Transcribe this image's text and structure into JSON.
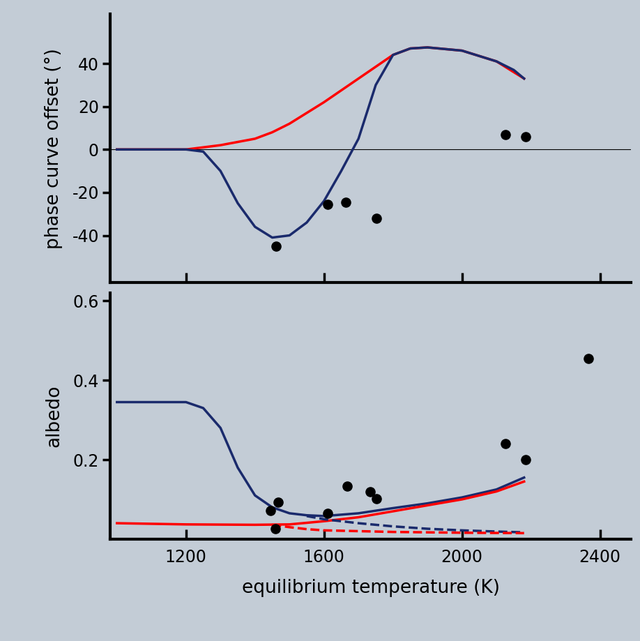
{
  "chart_data": [
    {
      "type": "line",
      "ylabel": "phase curve offset (°)",
      "xlim": [
        980,
        2490
      ],
      "xticks": [
        1200,
        1600,
        2000,
        2400
      ],
      "ylim": [
        -62,
        63
      ],
      "yticks": [
        -40,
        -20,
        0,
        20,
        40
      ],
      "tick_labels": "y",
      "series": [
        {
          "type": "line",
          "color": "#000000",
          "line_style": "solid",
          "x": [
            980,
            2490
          ],
          "values": [
            0,
            0
          ]
        },
        {
          "type": "line",
          "color": "#ff0000",
          "line_style": "solid",
          "x": [
            1000,
            1200,
            1300,
            1400,
            1450,
            1500,
            1600,
            1700,
            1800,
            1850,
            1900,
            2000,
            2100,
            2180
          ],
          "values": [
            0,
            0,
            2,
            5,
            8,
            12,
            22,
            33,
            44,
            47,
            47.5,
            46,
            41,
            33
          ]
        },
        {
          "type": "line",
          "color": "#1a2a6c",
          "line_style": "solid",
          "x": [
            1000,
            1100,
            1200,
            1250,
            1300,
            1350,
            1400,
            1450,
            1500,
            1550,
            1600,
            1650,
            1700,
            1750,
            1800,
            1850,
            1900,
            2000,
            2100,
            2150,
            2180
          ],
          "values": [
            0,
            0,
            0,
            -1,
            -10,
            -25,
            -36,
            -41,
            -40,
            -34,
            -24,
            -10,
            5,
            30,
            44,
            47,
            47.5,
            46,
            41,
            37,
            33
          ]
        },
        {
          "type": "scatter",
          "color": "#000000",
          "marker": "o",
          "x": [
            1461,
            1610,
            1663,
            1753,
            2126,
            2184
          ],
          "values": [
            -44.9,
            -25.6,
            -24.7,
            -32,
            7,
            6
          ]
        }
      ]
    },
    {
      "type": "line",
      "xlabel": "equilibrium temperature (K)",
      "ylabel": "albedo",
      "xlim": [
        980,
        2490
      ],
      "xticks": [
        1200,
        1600,
        2000,
        2400
      ],
      "ylim": [
        0,
        0.62
      ],
      "yticks": [
        0.2,
        0.4,
        0.6
      ],
      "series": [
        {
          "type": "line",
          "color": "#1a2a6c",
          "line_style": "solid",
          "x": [
            1000,
            1200,
            1250,
            1300,
            1350,
            1400,
            1450,
            1500,
            1550,
            1600,
            1700,
            1800,
            1900,
            2000,
            2100,
            2180
          ],
          "values": [
            0.345,
            0.345,
            0.33,
            0.28,
            0.18,
            0.11,
            0.08,
            0.065,
            0.06,
            0.058,
            0.065,
            0.078,
            0.09,
            0.105,
            0.125,
            0.155
          ]
        },
        {
          "type": "line",
          "color": "#ff0000",
          "line_style": "solid",
          "x": [
            1000,
            1200,
            1400,
            1500,
            1600,
            1700,
            1800,
            1900,
            2000,
            2100,
            2180
          ],
          "values": [
            0.04,
            0.037,
            0.036,
            0.037,
            0.045,
            0.055,
            0.07,
            0.085,
            0.1,
            0.12,
            0.145
          ]
        },
        {
          "type": "line",
          "color": "#1a2a6c",
          "line_style": "dashed",
          "x": [
            1550,
            1600,
            1700,
            1800,
            1900,
            2000,
            2100,
            2180
          ],
          "values": [
            0.058,
            0.05,
            0.04,
            0.032,
            0.026,
            0.022,
            0.019,
            0.017
          ]
        },
        {
          "type": "line",
          "color": "#ff0000",
          "line_style": "dashed",
          "x": [
            1450,
            1500,
            1550,
            1600,
            1700,
            1800,
            1900,
            2000,
            2180
          ],
          "values": [
            0.036,
            0.03,
            0.025,
            0.022,
            0.02,
            0.018,
            0.017,
            0.016,
            0.015
          ]
        },
        {
          "type": "scatter",
          "color": "#000000",
          "marker": "o",
          "x": [
            1445,
            1467,
            1460,
            1610,
            1667,
            1733,
            1753,
            2126,
            2184,
            2367
          ],
          "values": [
            0.072,
            0.093,
            0.027,
            0.065,
            0.134,
            0.12,
            0.101,
            0.24,
            0.2,
            0.455
          ]
        }
      ]
    }
  ]
}
